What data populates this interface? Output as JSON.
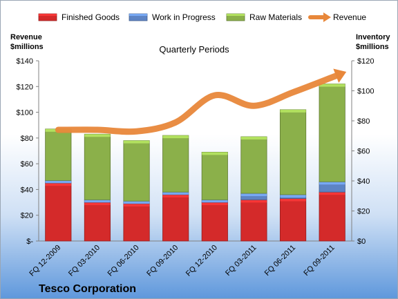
{
  "chart_data": {
    "type": "bar",
    "stacked": true,
    "title": "Quarterly Periods",
    "company": "Tesco Corporation",
    "categories": [
      "FQ 12-2009",
      "FQ 03-2010",
      "FQ 06-2010",
      "FQ 09-2010",
      "FQ 12-2010",
      "FQ 03-2011",
      "FQ 06-2011",
      "FQ 09-2011"
    ],
    "series": [
      {
        "name": "Finished Goods",
        "color": "#d42a2a",
        "axis": "left",
        "values": [
          45,
          30,
          29,
          36,
          30,
          32,
          33,
          38
        ]
      },
      {
        "name": "Work in Progress",
        "color": "#5d84c5",
        "axis": "left",
        "values": [
          2,
          2,
          2,
          2,
          2,
          5,
          3,
          8
        ]
      },
      {
        "name": "Raw Materials",
        "color": "#8bb04a",
        "axis": "left",
        "values": [
          40,
          51,
          47,
          44,
          37,
          44,
          66,
          76
        ]
      },
      {
        "name": "Revenue",
        "color": "#e8873a",
        "type": "line",
        "axis": "right",
        "values": [
          74,
          74,
          73,
          79,
          97,
          90,
          99,
          109
        ]
      }
    ],
    "y_left": {
      "label_line1": "Revenue",
      "label_line2": "$millions",
      "ylim": [
        0,
        140
      ],
      "ticks": [
        "$-",
        "$20",
        "$40",
        "$60",
        "$80",
        "$100",
        "$120",
        "$140"
      ]
    },
    "y_right": {
      "label_line1": "Inventory",
      "label_line2": "$millions",
      "ylim": [
        0,
        120
      ],
      "ticks": [
        "$0",
        "$20",
        "$40",
        "$60",
        "$80",
        "$100",
        "$120"
      ]
    },
    "grid": false,
    "legend_position": "top"
  }
}
